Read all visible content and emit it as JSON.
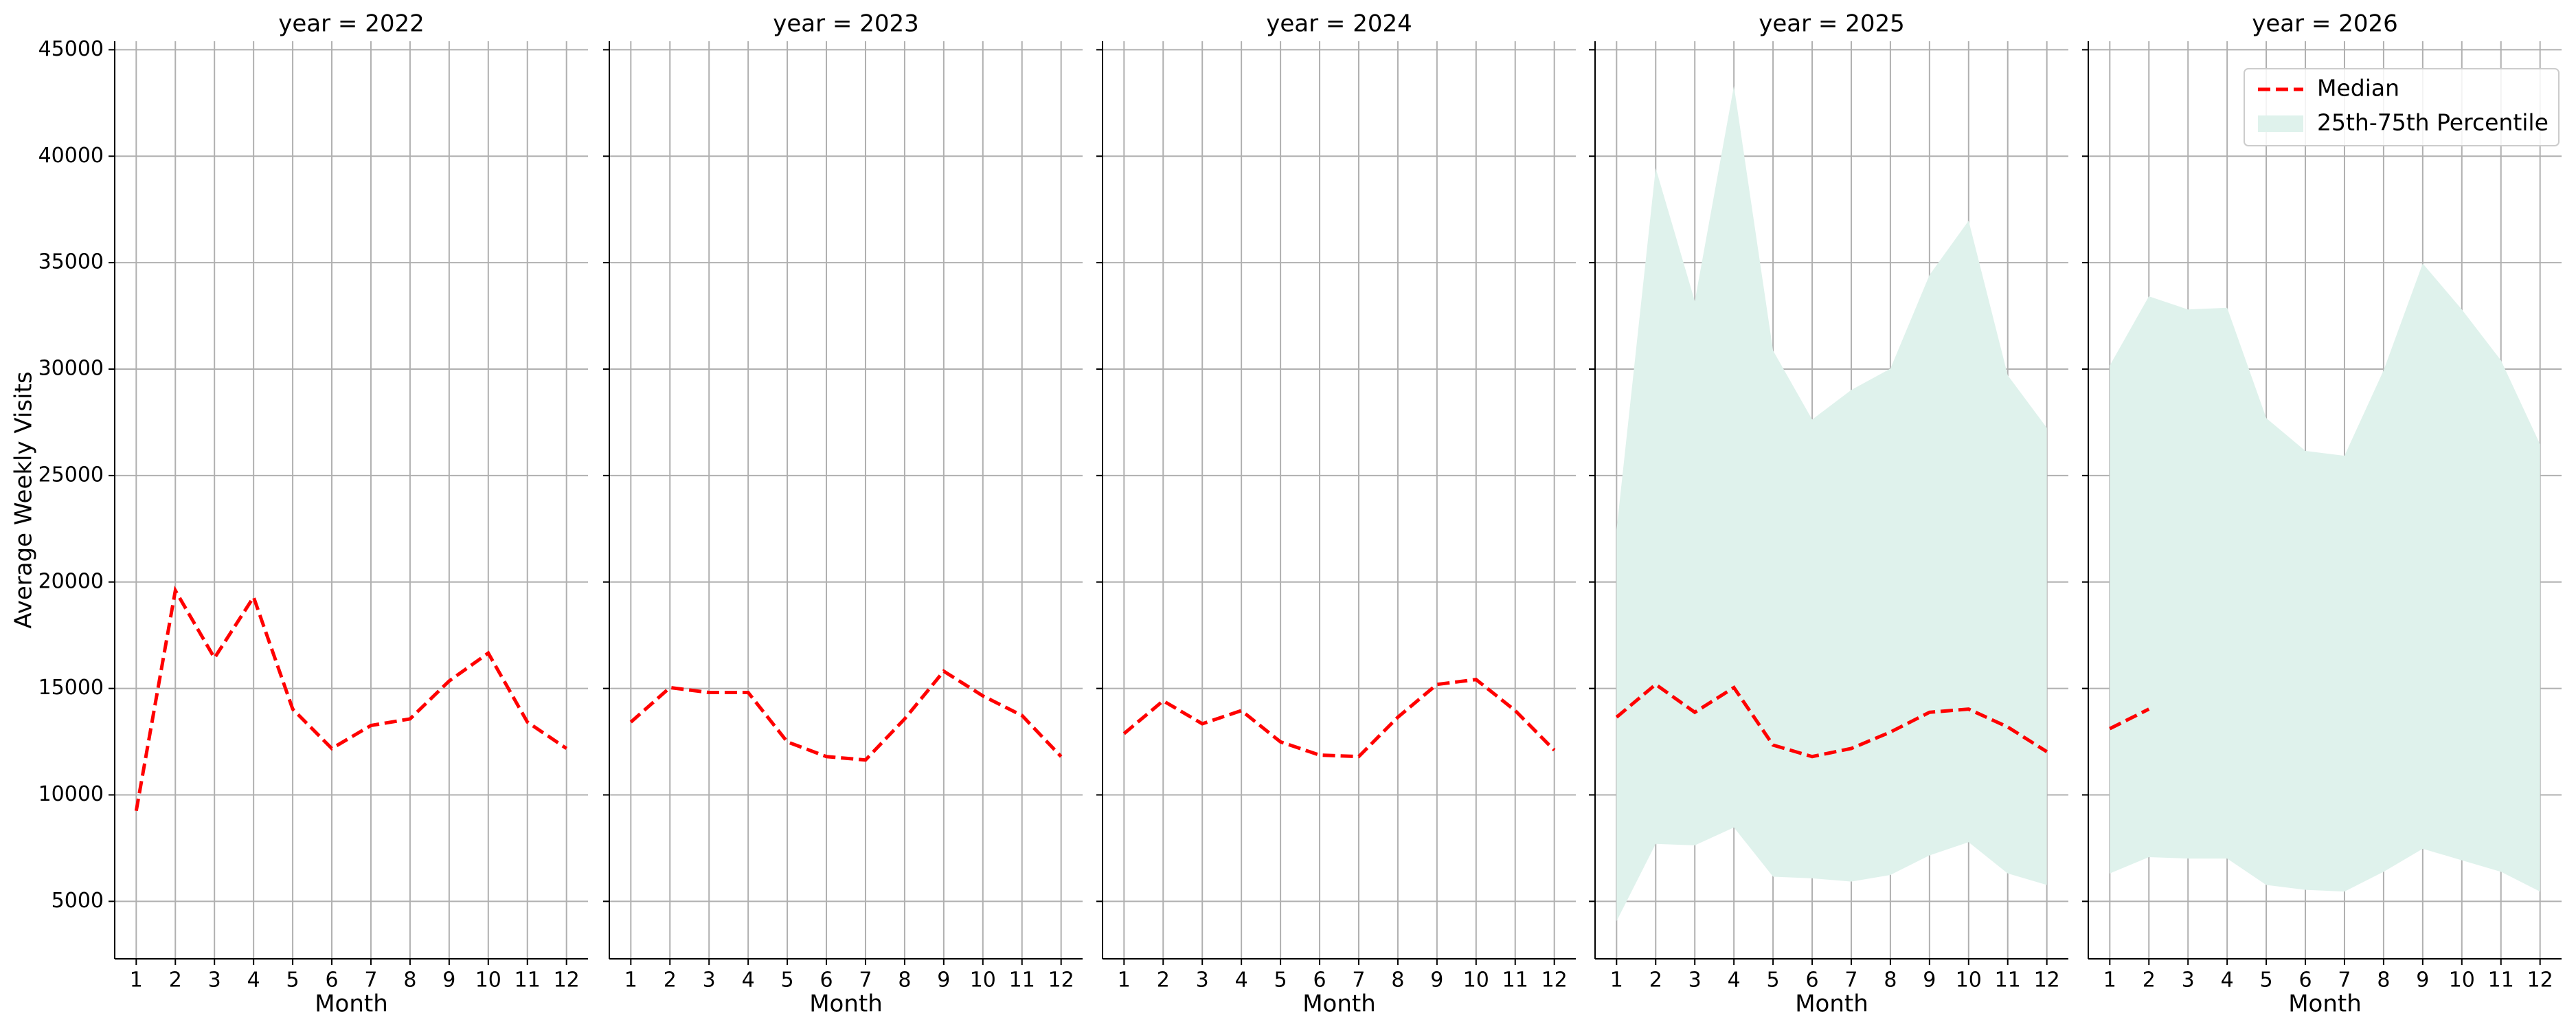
{
  "chart_data": [
    {
      "type": "line",
      "title": "year = 2022",
      "xlabel": "Month",
      "ylabel": "Average Weekly Visits",
      "x": [
        1,
        2,
        3,
        4,
        5,
        6,
        7,
        8,
        9,
        10,
        11,
        12
      ],
      "xticks": [
        1,
        2,
        3,
        4,
        5,
        6,
        7,
        8,
        9,
        10,
        11,
        12
      ],
      "xlim": [
        0.45,
        12.55
      ],
      "ylim": [
        2300,
        45400
      ],
      "yticks": [
        5000,
        10000,
        15000,
        20000,
        25000,
        30000,
        35000,
        40000,
        45000
      ],
      "grid": true,
      "series": [
        {
          "color": "#ff0000",
          "values": [
            9250,
            19600,
            16430,
            19290,
            14030,
            12180,
            13260,
            13570,
            15350,
            16660,
            13420,
            12180
          ]
        }
      ]
    },
    {
      "type": "line",
      "title": "year = 2023",
      "xlabel": "Month",
      "x": [
        1,
        2,
        3,
        4,
        5,
        6,
        7,
        8,
        9,
        10,
        11,
        12
      ],
      "xticks": [
        1,
        2,
        3,
        4,
        5,
        6,
        7,
        8,
        9,
        10,
        11,
        12
      ],
      "xlim": [
        0.45,
        12.55
      ],
      "ylim": [
        2300,
        45400
      ],
      "yticks": [
        5000,
        10000,
        15000,
        20000,
        25000,
        30000,
        35000,
        40000,
        45000
      ],
      "grid": true,
      "series": [
        {
          "color": "#ff0000",
          "values": [
            13420,
            15040,
            14810,
            14810,
            12490,
            11800,
            11640,
            13570,
            15810,
            14650,
            13730,
            11800
          ]
        }
      ]
    },
    {
      "type": "line",
      "title": "year = 2024",
      "xlabel": "Month",
      "x": [
        1,
        2,
        3,
        4,
        5,
        6,
        7,
        8,
        9,
        10,
        11,
        12
      ],
      "xticks": [
        1,
        2,
        3,
        4,
        5,
        6,
        7,
        8,
        9,
        10,
        11,
        12
      ],
      "xlim": [
        0.45,
        12.55
      ],
      "ylim": [
        2300,
        45400
      ],
      "yticks": [
        5000,
        10000,
        15000,
        20000,
        25000,
        30000,
        35000,
        40000,
        45000
      ],
      "grid": true,
      "series": [
        {
          "color": "#ff0000",
          "values": [
            12880,
            14420,
            13340,
            13960,
            12490,
            11870,
            11800,
            13650,
            15190,
            15420,
            13960,
            12100
          ]
        }
      ]
    },
    {
      "type": "line",
      "title": "year = 2025",
      "xlabel": "Month",
      "x": [
        1,
        2,
        3,
        4,
        5,
        6,
        7,
        8,
        9,
        10,
        11,
        12
      ],
      "xticks": [
        1,
        2,
        3,
        4,
        5,
        6,
        7,
        8,
        9,
        10,
        11,
        12
      ],
      "xlim": [
        0.45,
        12.55
      ],
      "ylim": [
        2300,
        45400
      ],
      "yticks": [
        5000,
        10000,
        15000,
        20000,
        25000,
        30000,
        35000,
        40000,
        45000
      ],
      "grid": true,
      "series": [
        {
          "color": "#ff0000",
          "values": [
            13650,
            15190,
            13880,
            15040,
            12340,
            11800,
            12180,
            12950,
            13880,
            14030,
            13190,
            12030
          ]
        }
      ],
      "band": {
        "color": "#dff2ec",
        "low": [
          4070,
          7700,
          7630,
          8470,
          6160,
          6080,
          5930,
          6240,
          7160,
          7780,
          6310,
          5770
        ],
        "high": [
          22450,
          39440,
          33190,
          43300,
          30870,
          27630,
          29020,
          30020,
          34420,
          36970,
          29710,
          27240
        ]
      }
    },
    {
      "type": "line",
      "title": "year = 2026",
      "xlabel": "Month",
      "x": [
        1,
        2,
        3,
        4,
        5,
        6,
        7,
        8,
        9,
        10,
        11,
        12
      ],
      "xticks": [
        1,
        2,
        3,
        4,
        5,
        6,
        7,
        8,
        9,
        10,
        11,
        12
      ],
      "xlim": [
        0.45,
        12.55
      ],
      "ylim": [
        2300,
        45400
      ],
      "yticks": [
        5000,
        10000,
        15000,
        20000,
        25000,
        30000,
        35000,
        40000,
        45000
      ],
      "grid": true,
      "series": [
        {
          "name": "Median",
          "color": "#ff0000",
          "values": [
            13110,
            14030,
            null,
            null,
            null,
            null,
            null,
            null,
            null,
            null,
            null,
            null
          ]
        }
      ],
      "band": {
        "name": "25th-75th Percentile",
        "color": "#dff2ec",
        "low": [
          6310,
          7080,
          7010,
          7010,
          5770,
          5540,
          5460,
          6390,
          7470,
          6930,
          6390,
          5460
        ],
        "high": [
          30170,
          33420,
          32800,
          32880,
          27700,
          26160,
          25930,
          29940,
          34960,
          32800,
          30410,
          26470
        ]
      },
      "legend": "upper right"
    }
  ]
}
